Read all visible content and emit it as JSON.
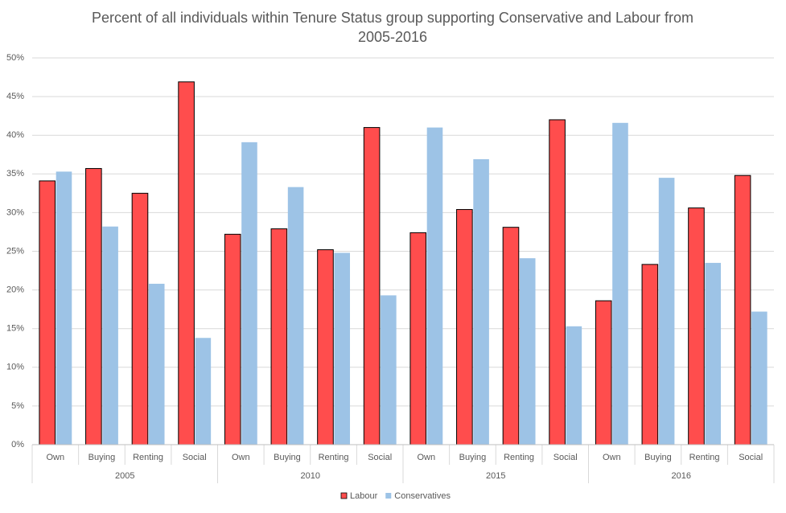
{
  "chart_data": {
    "type": "bar",
    "title": "Percent of all individuals within Tenure Status group supporting Conservative and Labour from 2005-2016",
    "groups": [
      {
        "label": "2005",
        "categories": [
          "Own",
          "Buying",
          "Renting",
          "Social"
        ]
      },
      {
        "label": "2010",
        "categories": [
          "Own",
          "Buying",
          "Renting",
          "Social"
        ]
      },
      {
        "label": "2015",
        "categories": [
          "Own",
          "Buying",
          "Renting",
          "Social"
        ]
      },
      {
        "label": "2016",
        "categories": [
          "Own",
          "Buying",
          "Renting",
          "Social"
        ]
      }
    ],
    "series": [
      {
        "name": "Labour",
        "color": "#ff4d4d",
        "values": [
          34.1,
          35.7,
          32.5,
          46.9,
          27.2,
          27.9,
          25.2,
          41.0,
          27.4,
          30.4,
          28.1,
          42.0,
          18.6,
          23.3,
          30.6,
          34.8
        ]
      },
      {
        "name": "Conservatives",
        "color": "#9dc3e6",
        "values": [
          35.3,
          28.2,
          20.8,
          13.8,
          39.1,
          33.3,
          24.8,
          19.3,
          41.0,
          36.9,
          24.1,
          15.3,
          41.6,
          34.5,
          23.5,
          17.2
        ]
      }
    ],
    "ylim": [
      0,
      50
    ],
    "yticks": [
      {
        "value": 0,
        "label": "0%"
      },
      {
        "value": 5,
        "label": "5%"
      },
      {
        "value": 10,
        "label": "10%"
      },
      {
        "value": 15,
        "label": "15%"
      },
      {
        "value": 20,
        "label": "20%"
      },
      {
        "value": 25,
        "label": "25%"
      },
      {
        "value": 30,
        "label": "30%"
      },
      {
        "value": 35,
        "label": "35%"
      },
      {
        "value": 40,
        "label": "40%"
      },
      {
        "value": 45,
        "label": "45%"
      },
      {
        "value": 50,
        "label": "50%"
      }
    ],
    "grid": true,
    "legend": "bottom"
  }
}
